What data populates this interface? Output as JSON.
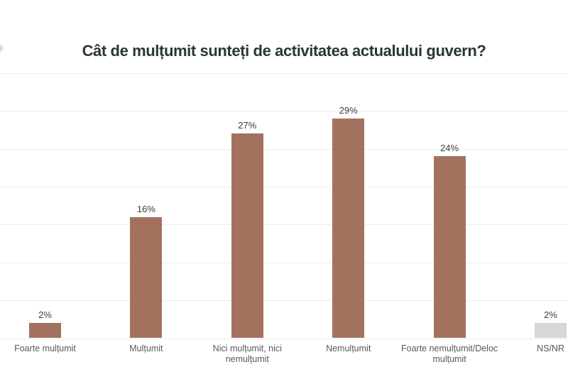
{
  "page": {
    "background": "#ffffff",
    "title_color": "#2a3732"
  },
  "colors": {
    "grid": "#ececec",
    "value_label": "#3d3d3d",
    "category_label": "#595959",
    "bar_main": "#a3725f",
    "bar_nsnr": "#d7d7d7"
  },
  "chart_data": {
    "type": "bar",
    "title": "Cât de mulțumit sunteți de activitatea actualului guvern?",
    "categories": [
      "Foarte mulțumit",
      "Mulțumit",
      "Nici mulțumit, nici nemulțumit",
      "Nemulțumit",
      "Foarte nemulțumit/Deloc mulțumit",
      "NS/NR"
    ],
    "values": [
      2,
      16,
      27,
      29,
      24,
      2
    ],
    "value_labels": [
      "2%",
      "16%",
      "27%",
      "29%",
      "24%",
      "2%"
    ],
    "bar_colors": [
      "#a3725f",
      "#a3725f",
      "#a3725f",
      "#a3725f",
      "#a3725f",
      "#d7d7d7"
    ],
    "xlabel": "",
    "ylabel": "",
    "ylim": [
      0,
      35
    ],
    "gridline_step": 5,
    "grid": true,
    "legend": false,
    "axis_tick_labels_visible": false
  }
}
